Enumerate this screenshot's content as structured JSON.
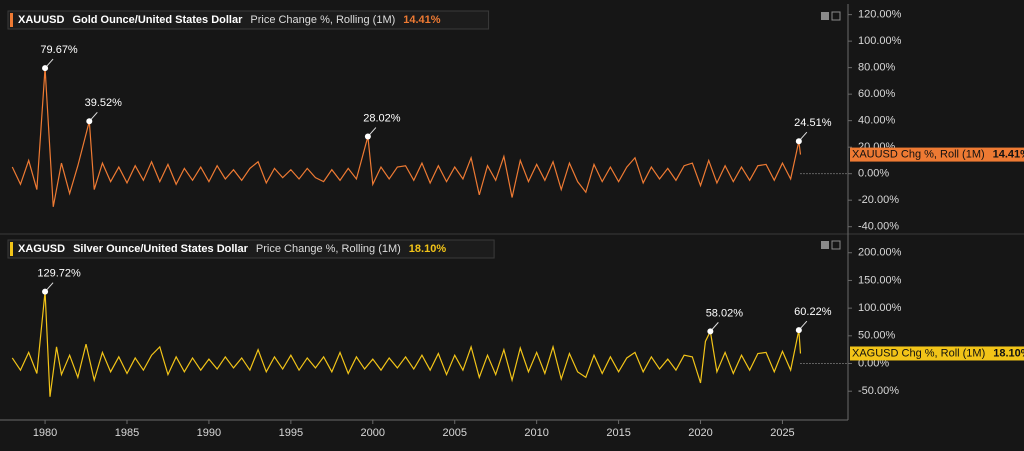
{
  "chart_data": [
    {
      "type": "line",
      "xlim": [
        1977.25,
        2029.0
      ],
      "ylim": [
        -44,
        125
      ],
      "yticks": [
        {
          "value": 120,
          "label": "120.00%"
        },
        {
          "value": 100,
          "label": "100.00%"
        },
        {
          "value": 80,
          "label": "80.00%"
        },
        {
          "value": 60,
          "label": "60.00%"
        },
        {
          "value": 40,
          "label": "40.00%"
        },
        {
          "value": 20,
          "label": "20.00%"
        },
        {
          "value": 0,
          "label": "0.00%"
        },
        {
          "value": -20,
          "label": "-20.00%"
        },
        {
          "value": -40,
          "label": "-40.00%"
        }
      ],
      "grid": false,
      "x": [
        1978.0,
        1978.5,
        1979.0,
        1979.5,
        1980.0,
        1980.5,
        1981.0,
        1981.5,
        1982.0,
        1982.7,
        1983.0,
        1983.5,
        1984.0,
        1984.5,
        1985.0,
        1985.5,
        1986.0,
        1986.5,
        1987.0,
        1987.5,
        1988.0,
        1988.5,
        1989.0,
        1989.5,
        1990.0,
        1990.5,
        1991.0,
        1991.5,
        1992.0,
        1992.5,
        1993.0,
        1993.5,
        1994.0,
        1994.5,
        1995.0,
        1995.5,
        1996.0,
        1996.5,
        1997.0,
        1997.5,
        1998.0,
        1998.5,
        1999.0,
        1999.7,
        2000.0,
        2000.5,
        2001.0,
        2001.5,
        2002.0,
        2002.5,
        2003.0,
        2003.5,
        2004.0,
        2004.5,
        2005.0,
        2005.5,
        2006.0,
        2006.5,
        2007.0,
        2007.5,
        2008.0,
        2008.5,
        2009.0,
        2009.5,
        2010.0,
        2010.5,
        2011.0,
        2011.5,
        2012.0,
        2012.5,
        2013.0,
        2013.5,
        2014.0,
        2014.5,
        2015.0,
        2015.5,
        2016.0,
        2016.5,
        2017.0,
        2017.5,
        2018.0,
        2018.5,
        2019.0,
        2019.5,
        2020.0,
        2020.5,
        2021.0,
        2021.5,
        2022.0,
        2022.5,
        2023.0,
        2023.5,
        2024.0,
        2024.5,
        2025.0,
        2025.5,
        2026.0,
        2026.1
      ],
      "series": [
        {
          "symbol": "XAUUSD",
          "name": "Gold Ounce/United States Dollar",
          "measure": "Price Change %, Rolling (1M)",
          "last_label": "14.41%",
          "tag": "XAUUSD Chg %, Roll (1M)",
          "color": "#ee7a33",
          "values": [
            5,
            -8,
            10,
            -12,
            79.67,
            -25,
            8,
            -15,
            6,
            39.52,
            -12,
            8,
            -6,
            5,
            -7,
            6,
            -5,
            9,
            -6,
            7,
            -8,
            4,
            -5,
            5,
            -6,
            6,
            -4,
            3,
            -5,
            4,
            9,
            -7,
            4,
            -3,
            3,
            -4,
            4,
            -3,
            -6,
            3,
            -5,
            4,
            -4,
            28.02,
            -8,
            5,
            -4,
            5,
            6,
            -5,
            8,
            -7,
            6,
            -6,
            5,
            -4,
            12,
            -16,
            6,
            -5,
            13,
            -18,
            10,
            -6,
            7,
            -5,
            9,
            -12,
            8,
            -6,
            -14,
            7,
            -6,
            5,
            -6,
            5,
            12,
            -7,
            5,
            -4,
            4,
            -5,
            6,
            8,
            -9,
            10,
            -7,
            6,
            -6,
            5,
            -5,
            6,
            7,
            -5,
            8,
            -4,
            24.51,
            14.41
          ]
        }
      ],
      "annotations": [
        {
          "x": 1980.0,
          "y": 79.67,
          "label": "79.67%"
        },
        {
          "x": 1982.7,
          "y": 39.52,
          "label": "39.52%"
        },
        {
          "x": 1999.7,
          "y": 28.02,
          "label": "28.02%"
        },
        {
          "x": 2026.0,
          "y": 24.51,
          "label": "24.51%"
        }
      ]
    },
    {
      "type": "line",
      "xlim": [
        1977.25,
        2029.0
      ],
      "ylim": [
        -102,
        223
      ],
      "xticks": [
        1980,
        1985,
        1990,
        1995,
        2000,
        2005,
        2010,
        2015,
        2020,
        2025
      ],
      "yticks": [
        {
          "value": 200,
          "label": "200.00%"
        },
        {
          "value": 150,
          "label": "150.00%"
        },
        {
          "value": 100,
          "label": "100.00%"
        },
        {
          "value": 50,
          "label": "50.00%"
        },
        {
          "value": 0,
          "label": "0.00%"
        },
        {
          "value": -50,
          "label": "-50.00%"
        }
      ],
      "grid": false,
      "x": [
        1978.0,
        1978.5,
        1979.0,
        1979.5,
        1980.0,
        1980.3,
        1980.7,
        1981.0,
        1981.5,
        1982.0,
        1982.5,
        1983.0,
        1983.5,
        1984.0,
        1984.5,
        1985.0,
        1985.5,
        1986.0,
        1986.5,
        1987.0,
        1987.5,
        1988.0,
        1988.5,
        1989.0,
        1989.5,
        1990.0,
        1990.5,
        1991.0,
        1991.5,
        1992.0,
        1992.5,
        1993.0,
        1993.5,
        1994.0,
        1994.5,
        1995.0,
        1995.5,
        1996.0,
        1996.5,
        1997.0,
        1997.5,
        1998.0,
        1998.5,
        1999.0,
        1999.5,
        2000.0,
        2000.5,
        2001.0,
        2001.5,
        2002.0,
        2002.5,
        2003.0,
        2003.5,
        2004.0,
        2004.5,
        2005.0,
        2005.5,
        2006.0,
        2006.5,
        2007.0,
        2007.5,
        2008.0,
        2008.5,
        2009.0,
        2009.5,
        2010.0,
        2010.5,
        2011.0,
        2011.5,
        2012.0,
        2012.5,
        2013.0,
        2013.5,
        2014.0,
        2014.5,
        2015.0,
        2015.5,
        2016.0,
        2016.5,
        2017.0,
        2017.5,
        2018.0,
        2018.5,
        2019.0,
        2019.5,
        2020.0,
        2020.3,
        2020.6,
        2021.0,
        2021.5,
        2022.0,
        2022.5,
        2023.0,
        2023.5,
        2024.0,
        2024.5,
        2025.0,
        2025.5,
        2026.0,
        2026.1
      ],
      "series": [
        {
          "symbol": "XAGUSD",
          "name": "Silver Ounce/United States Dollar",
          "measure": "Price Change %, Rolling (1M)",
          "last_label": "18.10%",
          "tag": "XAGUSD Chg %, Roll (1M)",
          "color": "#f2c418",
          "values": [
            10,
            -12,
            20,
            -18,
            129.72,
            -60,
            30,
            -20,
            15,
            -25,
            35,
            -30,
            20,
            -15,
            12,
            -18,
            10,
            -12,
            15,
            30,
            -20,
            12,
            -15,
            10,
            -12,
            8,
            -10,
            12,
            -8,
            10,
            -12,
            25,
            -15,
            12,
            -10,
            15,
            -12,
            10,
            -8,
            12,
            -15,
            20,
            -18,
            12,
            -10,
            8,
            -12,
            10,
            -8,
            12,
            -10,
            15,
            -12,
            18,
            -20,
            15,
            -12,
            30,
            -25,
            15,
            -20,
            25,
            -30,
            28,
            -15,
            20,
            -18,
            30,
            -28,
            18,
            -15,
            -25,
            15,
            -18,
            12,
            -15,
            10,
            20,
            -15,
            12,
            -10,
            8,
            -12,
            15,
            12,
            -35,
            40,
            58.02,
            -15,
            20,
            -18,
            15,
            -12,
            18,
            20,
            -15,
            22,
            -12,
            60.22,
            18.1
          ]
        }
      ],
      "annotations": [
        {
          "x": 1980.0,
          "y": 129.72,
          "label": "129.72%"
        },
        {
          "x": 2020.6,
          "y": 58.02,
          "label": "58.02%"
        },
        {
          "x": 2026.0,
          "y": 60.22,
          "label": "60.22%"
        }
      ]
    }
  ]
}
